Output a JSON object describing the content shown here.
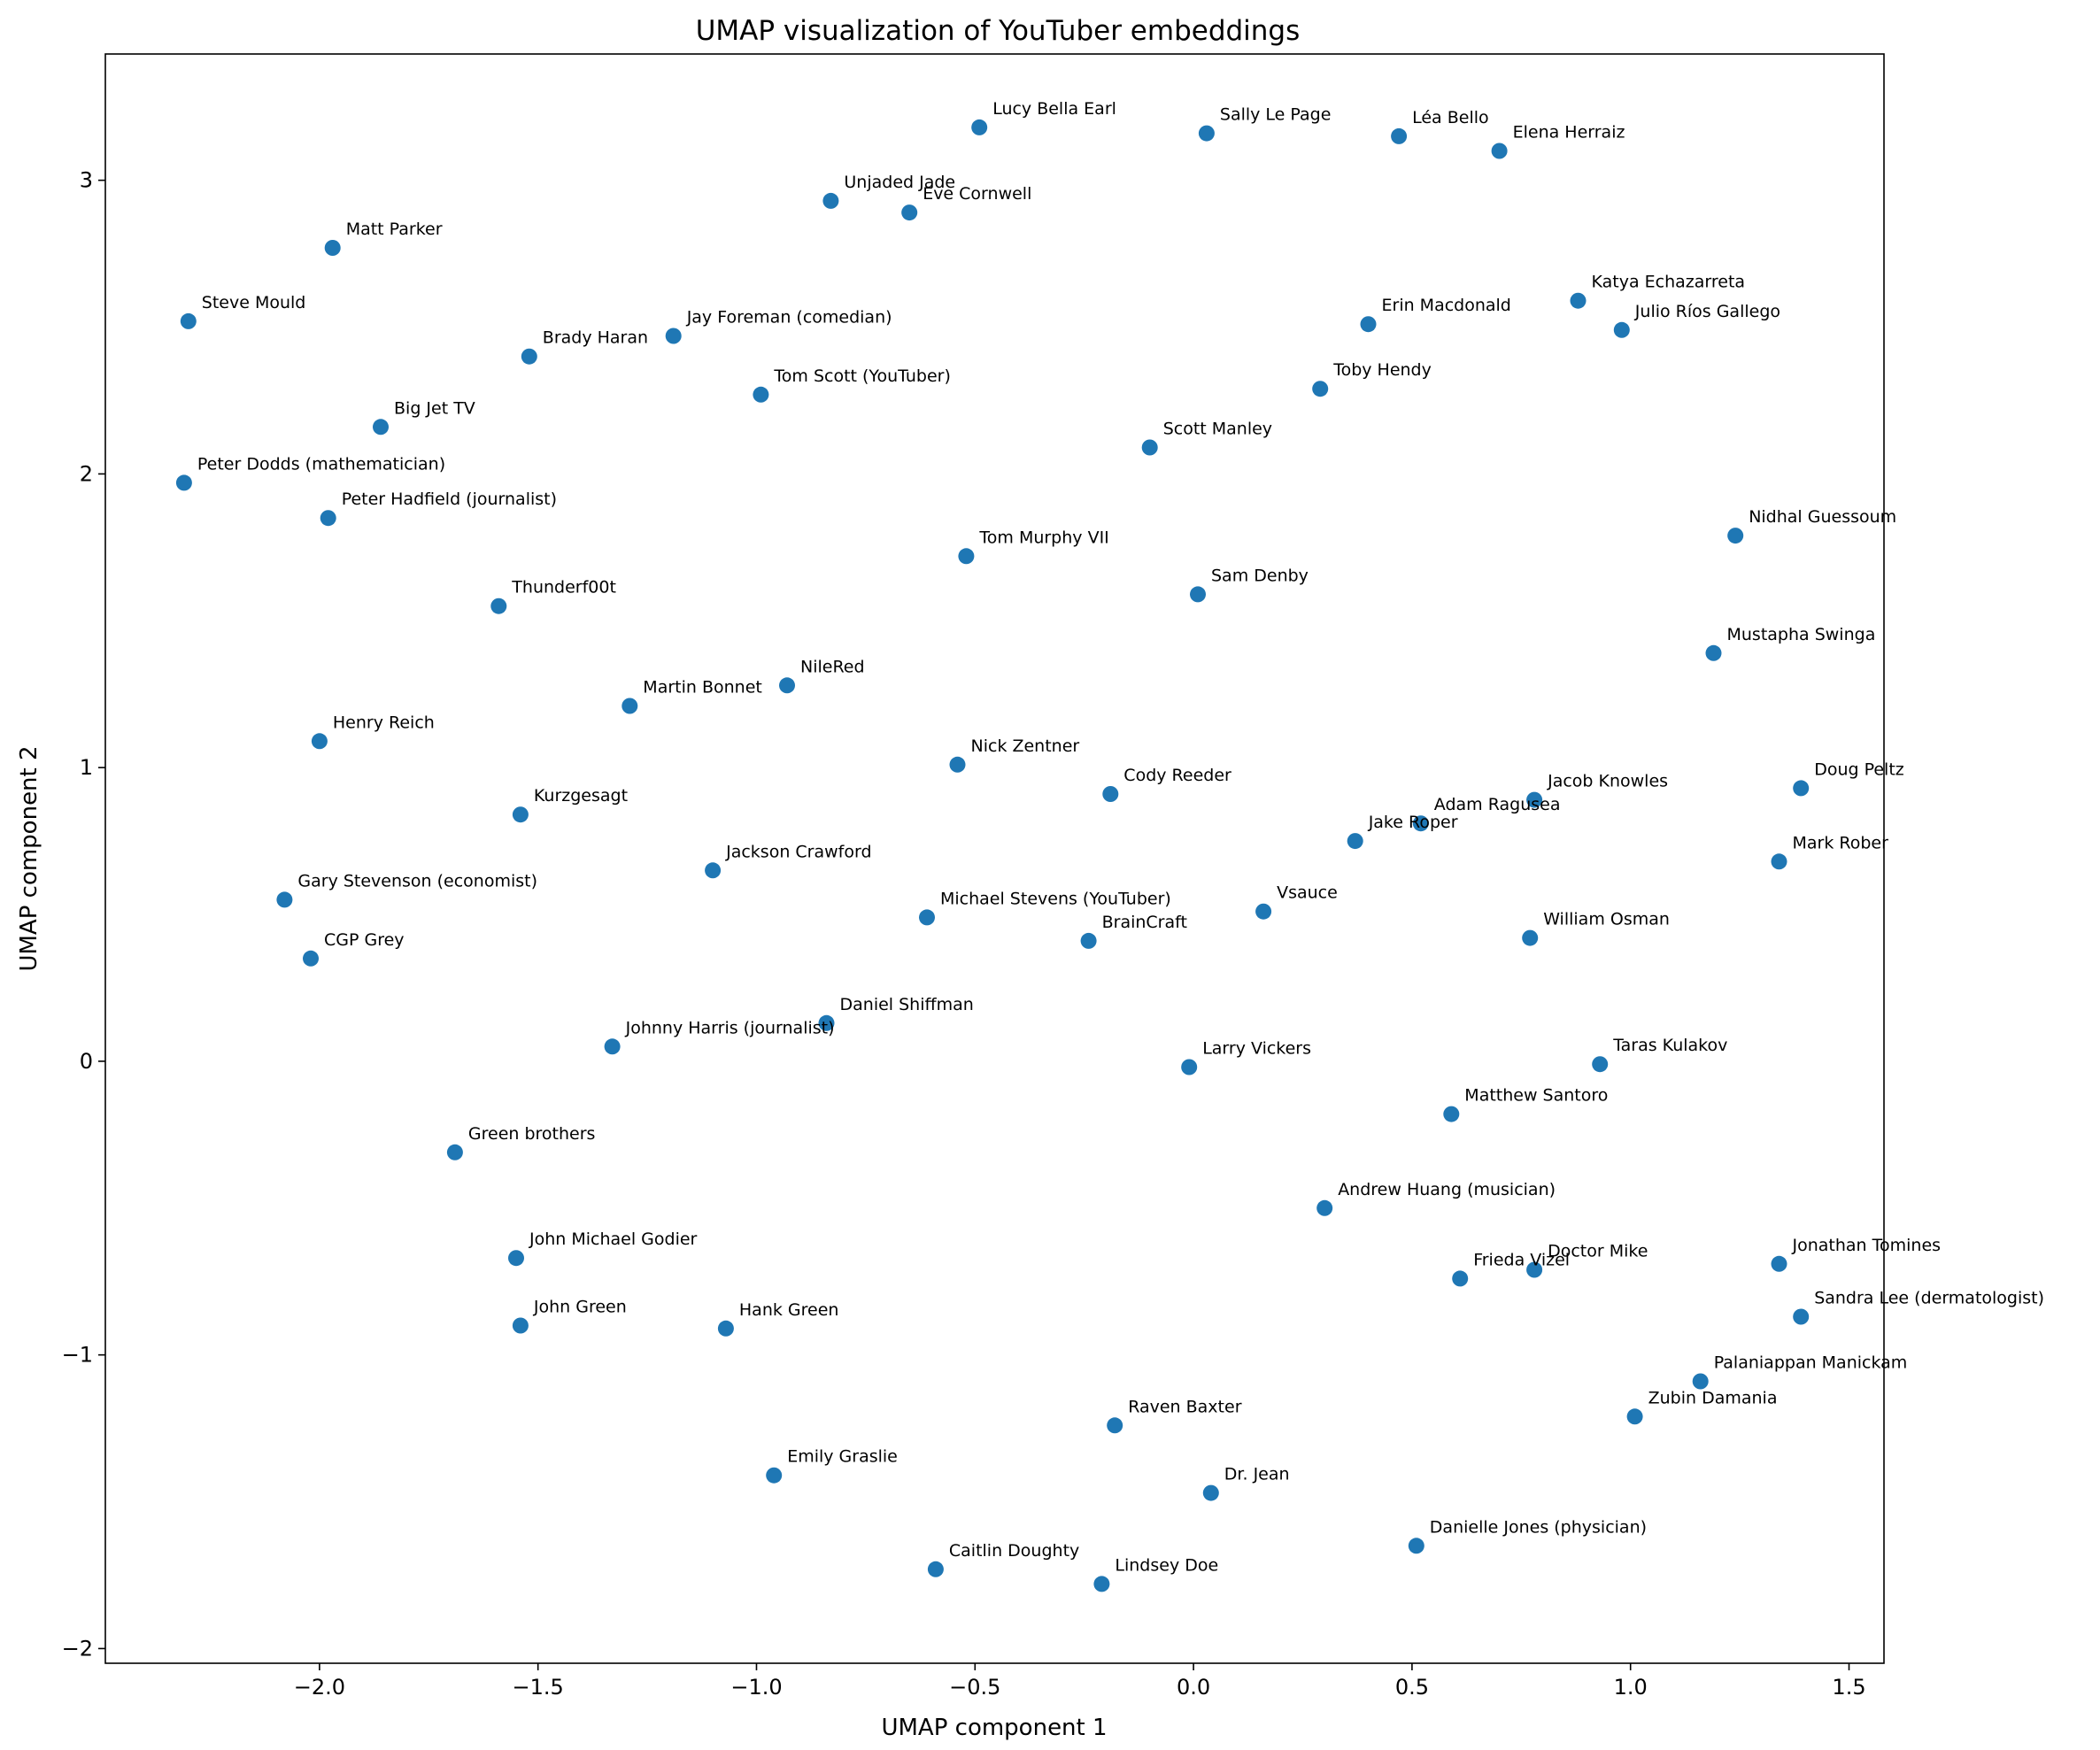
{
  "chart_data": {
    "type": "scatter",
    "title": "UMAP visualization of YouTuber embeddings",
    "xlabel": "UMAP component 1",
    "ylabel": "UMAP component 2",
    "xlim": [
      -2.49,
      1.58
    ],
    "ylim": [
      -2.05,
      3.43
    ],
    "xticks": [
      -2.0,
      -1.5,
      -1.0,
      -0.5,
      0.0,
      0.5,
      1.0,
      1.5
    ],
    "xtick_labels": [
      "−2.0",
      "−1.5",
      "−1.0",
      "−0.5",
      "0.0",
      "0.5",
      "1.0",
      "1.5"
    ],
    "yticks": [
      -2,
      -1,
      0,
      1,
      2,
      3
    ],
    "ytick_labels": [
      "−2",
      "−1",
      "0",
      "1",
      "2",
      "3"
    ],
    "grid": false,
    "color": "#1f77b4",
    "points": [
      {
        "label": "Lucy Bella Earl",
        "x": -0.49,
        "y": 3.18
      },
      {
        "label": "Sally Le Page",
        "x": 0.03,
        "y": 3.16
      },
      {
        "label": "Léa Bello",
        "x": 0.47,
        "y": 3.15
      },
      {
        "label": "Elena Herraiz",
        "x": 0.7,
        "y": 3.1
      },
      {
        "label": "Unjaded Jade",
        "x": -0.83,
        "y": 2.93
      },
      {
        "label": "Eve Cornwell",
        "x": -0.65,
        "y": 2.89
      },
      {
        "label": "Matt Parker",
        "x": -1.97,
        "y": 2.77
      },
      {
        "label": "Steve Mould",
        "x": -2.3,
        "y": 2.52
      },
      {
        "label": "Brady Haran",
        "x": -1.52,
        "y": 2.4
      },
      {
        "label": "Jay Foreman (comedian)",
        "x": -1.19,
        "y": 2.47
      },
      {
        "label": "Tom Scott (YouTuber)",
        "x": -0.99,
        "y": 2.27
      },
      {
        "label": "Erin Macdonald",
        "x": 0.4,
        "y": 2.51
      },
      {
        "label": "Katya Echazarreta",
        "x": 0.88,
        "y": 2.59
      },
      {
        "label": "Julio Ríos Gallego",
        "x": 0.98,
        "y": 2.49
      },
      {
        "label": "Toby Hendy",
        "x": 0.29,
        "y": 2.29
      },
      {
        "label": "Big Jet TV",
        "x": -1.86,
        "y": 2.16
      },
      {
        "label": "Scott Manley",
        "x": -0.1,
        "y": 2.09
      },
      {
        "label": "Peter Dodds (mathematician)",
        "x": -2.31,
        "y": 1.97
      },
      {
        "label": "Peter Hadfield (journalist)",
        "x": -1.98,
        "y": 1.85
      },
      {
        "label": "Nidhal Guessoum",
        "x": 1.24,
        "y": 1.79
      },
      {
        "label": "Tom Murphy VII",
        "x": -0.52,
        "y": 1.72
      },
      {
        "label": "Sam Denby",
        "x": 0.01,
        "y": 1.59
      },
      {
        "label": "Thunderf00t",
        "x": -1.59,
        "y": 1.55
      },
      {
        "label": "Mustapha Swinga",
        "x": 1.19,
        "y": 1.39
      },
      {
        "label": "NileRed",
        "x": -0.93,
        "y": 1.28
      },
      {
        "label": "Martin Bonnet",
        "x": -1.29,
        "y": 1.21
      },
      {
        "label": "Henry Reich",
        "x": -2.0,
        "y": 1.09
      },
      {
        "label": "Nick Zentner",
        "x": -0.54,
        "y": 1.01
      },
      {
        "label": "Doug Peltz",
        "x": 1.39,
        "y": 0.93
      },
      {
        "label": "Cody Reeder",
        "x": -0.19,
        "y": 0.91
      },
      {
        "label": "Jacob Knowles",
        "x": 0.78,
        "y": 0.89
      },
      {
        "label": "Kurzgesagt",
        "x": -1.54,
        "y": 0.84
      },
      {
        "label": "Adam Ragusea",
        "x": 0.52,
        "y": 0.81
      },
      {
        "label": "Jake Roper",
        "x": 0.37,
        "y": 0.75
      },
      {
        "label": "Mark Rober",
        "x": 1.34,
        "y": 0.68
      },
      {
        "label": "Jackson Crawford",
        "x": -1.1,
        "y": 0.65
      },
      {
        "label": "Gary Stevenson (economist)",
        "x": -2.08,
        "y": 0.55
      },
      {
        "label": "Vsauce",
        "x": 0.16,
        "y": 0.51
      },
      {
        "label": "Michael Stevens (YouTuber)",
        "x": -0.61,
        "y": 0.49
      },
      {
        "label": "William Osman",
        "x": 0.77,
        "y": 0.42
      },
      {
        "label": "BrainCraft",
        "x": -0.24,
        "y": 0.41
      },
      {
        "label": "CGP Grey",
        "x": -2.02,
        "y": 0.35
      },
      {
        "label": "Daniel Shiffman",
        "x": -0.84,
        "y": 0.13
      },
      {
        "label": "Johnny Harris (journalist)",
        "x": -1.33,
        "y": 0.05
      },
      {
        "label": "Larry Vickers",
        "x": -0.01,
        "y": -0.02
      },
      {
        "label": "Taras Kulakov",
        "x": 0.93,
        "y": -0.01
      },
      {
        "label": "Matthew Santoro",
        "x": 0.59,
        "y": -0.18
      },
      {
        "label": "Green brothers",
        "x": -1.69,
        "y": -0.31
      },
      {
        "label": "Andrew Huang (musician)",
        "x": 0.3,
        "y": -0.5
      },
      {
        "label": "John Michael Godier",
        "x": -1.55,
        "y": -0.67
      },
      {
        "label": "Jonathan Tomines",
        "x": 1.34,
        "y": -0.69
      },
      {
        "label": "Doctor Mike",
        "x": 0.78,
        "y": -0.71
      },
      {
        "label": "Frieda Vizel",
        "x": 0.61,
        "y": -0.74
      },
      {
        "label": "Sandra Lee (dermatologist)",
        "x": 1.39,
        "y": -0.87
      },
      {
        "label": "John Green",
        "x": -1.54,
        "y": -0.9
      },
      {
        "label": "Hank Green",
        "x": -1.07,
        "y": -0.91
      },
      {
        "label": "Palaniappan Manickam",
        "x": 1.16,
        "y": -1.09
      },
      {
        "label": "Zubin Damania",
        "x": 1.01,
        "y": -1.21
      },
      {
        "label": "Raven Baxter",
        "x": -0.18,
        "y": -1.24
      },
      {
        "label": "Emily Graslie",
        "x": -0.96,
        "y": -1.41
      },
      {
        "label": "Dr. Jean",
        "x": 0.04,
        "y": -1.47
      },
      {
        "label": "Danielle Jones (physician)",
        "x": 0.51,
        "y": -1.65
      },
      {
        "label": "Caitlin Doughty",
        "x": -0.59,
        "y": -1.73
      },
      {
        "label": "Lindsey Doe",
        "x": -0.21,
        "y": -1.78
      }
    ]
  }
}
